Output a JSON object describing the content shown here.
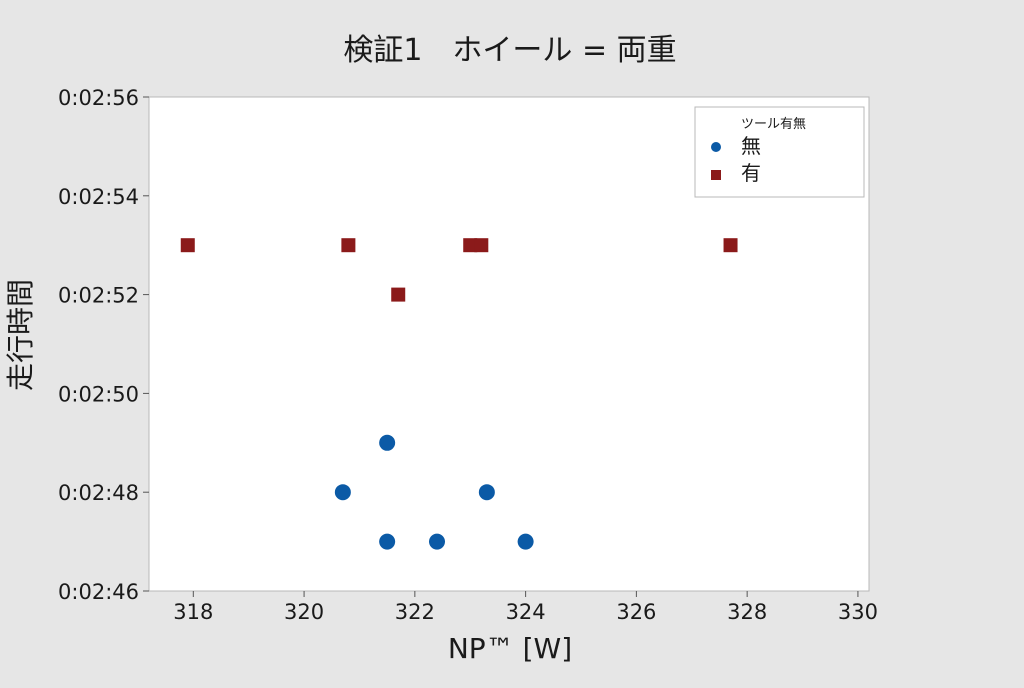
{
  "chart_data": {
    "type": "scatter",
    "title": "検証1　ホイール = 両重",
    "xlabel": "NP™ [W]",
    "ylabel": "走行時間",
    "xlim": [
      317.2,
      330.2
    ],
    "ylim": [
      166,
      176
    ],
    "x_ticks": [
      {
        "value": 318,
        "label": "318"
      },
      {
        "value": 320,
        "label": "320"
      },
      {
        "value": 322,
        "label": "322"
      },
      {
        "value": 324,
        "label": "324"
      },
      {
        "value": 326,
        "label": "326"
      },
      {
        "value": 328,
        "label": "328"
      },
      {
        "value": 330,
        "label": "330"
      }
    ],
    "y_ticks": [
      {
        "value": 166,
        "label": "0:02:46"
      },
      {
        "value": 168,
        "label": "0:02:48"
      },
      {
        "value": 170,
        "label": "0:02:50"
      },
      {
        "value": 172,
        "label": "0:02:52"
      },
      {
        "value": 174,
        "label": "0:02:54"
      },
      {
        "value": 176,
        "label": "0:02:56"
      }
    ],
    "grid": false,
    "legend": {
      "title": "ツール有無",
      "placement": "top-right"
    },
    "series": [
      {
        "name": "無",
        "marker": "circle",
        "color": "#0b5aa6",
        "points": [
          {
            "x": 320.7,
            "y": "0:02:48"
          },
          {
            "x": 321.5,
            "y": "0:02:49"
          },
          {
            "x": 321.5,
            "y": "0:02:47"
          },
          {
            "x": 322.4,
            "y": "0:02:47"
          },
          {
            "x": 323.3,
            "y": "0:02:48"
          },
          {
            "x": 324.0,
            "y": "0:02:47"
          }
        ]
      },
      {
        "name": "有",
        "marker": "square",
        "color": "#8b1a1a",
        "points": [
          {
            "x": 317.9,
            "y": "0:02:53"
          },
          {
            "x": 320.8,
            "y": "0:02:53"
          },
          {
            "x": 321.7,
            "y": "0:02:52"
          },
          {
            "x": 323.0,
            "y": "0:02:53"
          },
          {
            "x": 323.2,
            "y": "0:02:53"
          },
          {
            "x": 327.7,
            "y": "0:02:53"
          }
        ]
      }
    ]
  }
}
